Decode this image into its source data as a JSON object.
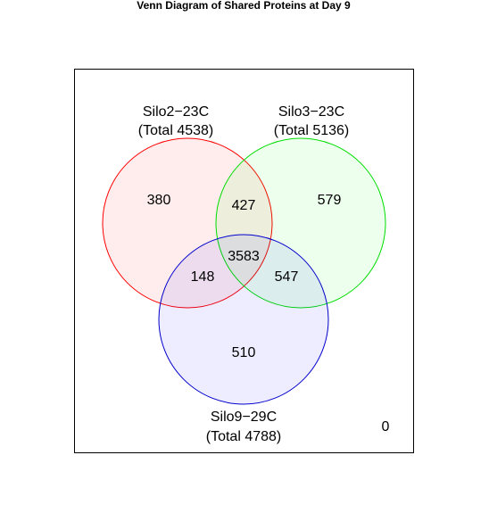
{
  "title": "Venn Diagram of Shared Proteins at Day 9",
  "sets": {
    "a": {
      "name": "Silo2−23C",
      "total": "(Total 4538)",
      "color": "#FF0000",
      "fill": "rgba(255,0,0,0.07)"
    },
    "b": {
      "name": "Silo3−23C",
      "total": "(Total 5136)",
      "color": "#00DD00",
      "fill": "rgba(0,255,0,0.07)"
    },
    "c": {
      "name": "Silo9−29C",
      "total": "(Total 4788)",
      "color": "#0000CC",
      "fill": "rgba(0,0,255,0.07)"
    }
  },
  "regions": {
    "a_only": "380",
    "b_only": "579",
    "c_only": "510",
    "ab": "427",
    "ac": "148",
    "bc": "547",
    "abc": "3583",
    "none": "0"
  }
}
